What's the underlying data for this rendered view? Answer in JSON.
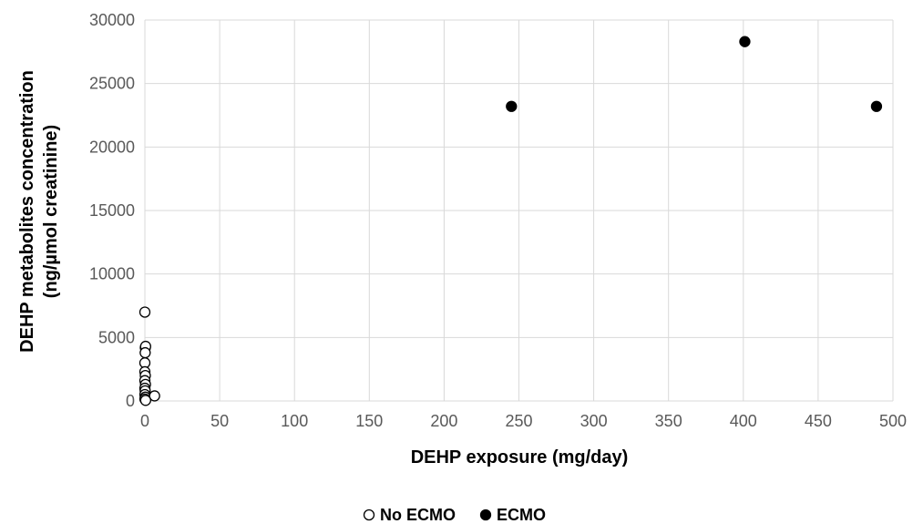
{
  "chart_data": {
    "type": "scatter",
    "xlabel": "DEHP exposure (mg/day)",
    "ylabel": [
      "DEHP metabolites concentration",
      "(ng/µmol creatinine)"
    ],
    "xlim": [
      0,
      500
    ],
    "ylim": [
      0,
      30000
    ],
    "x_ticks": [
      0,
      50,
      100,
      150,
      200,
      250,
      300,
      350,
      400,
      450,
      500
    ],
    "y_ticks": [
      0,
      5000,
      10000,
      15000,
      20000,
      25000,
      30000
    ],
    "grid": true,
    "legend_position": "bottom",
    "series": [
      {
        "name": "No ECMO",
        "marker": "open-circle",
        "color": "#000000",
        "points": [
          {
            "x": 0,
            "y": 7000
          },
          {
            "x": 0.3,
            "y": 4200
          },
          {
            "x": 0.5,
            "y": 4300
          },
          {
            "x": 0.2,
            "y": 3800
          },
          {
            "x": 0,
            "y": 3000
          },
          {
            "x": 0,
            "y": 2300
          },
          {
            "x": 0.3,
            "y": 2000
          },
          {
            "x": 0,
            "y": 1600
          },
          {
            "x": 0.4,
            "y": 1300
          },
          {
            "x": 0,
            "y": 1000
          },
          {
            "x": 0.2,
            "y": 800
          },
          {
            "x": 0,
            "y": 500
          },
          {
            "x": 0.3,
            "y": 300
          },
          {
            "x": 0,
            "y": 150
          },
          {
            "x": 0.5,
            "y": 50
          },
          {
            "x": 6.5,
            "y": 400
          }
        ]
      },
      {
        "name": "ECMO",
        "marker": "filled-circle",
        "color": "#000000",
        "points": [
          {
            "x": 245,
            "y": 23200
          },
          {
            "x": 401,
            "y": 28300
          },
          {
            "x": 489,
            "y": 23200
          }
        ]
      }
    ]
  }
}
